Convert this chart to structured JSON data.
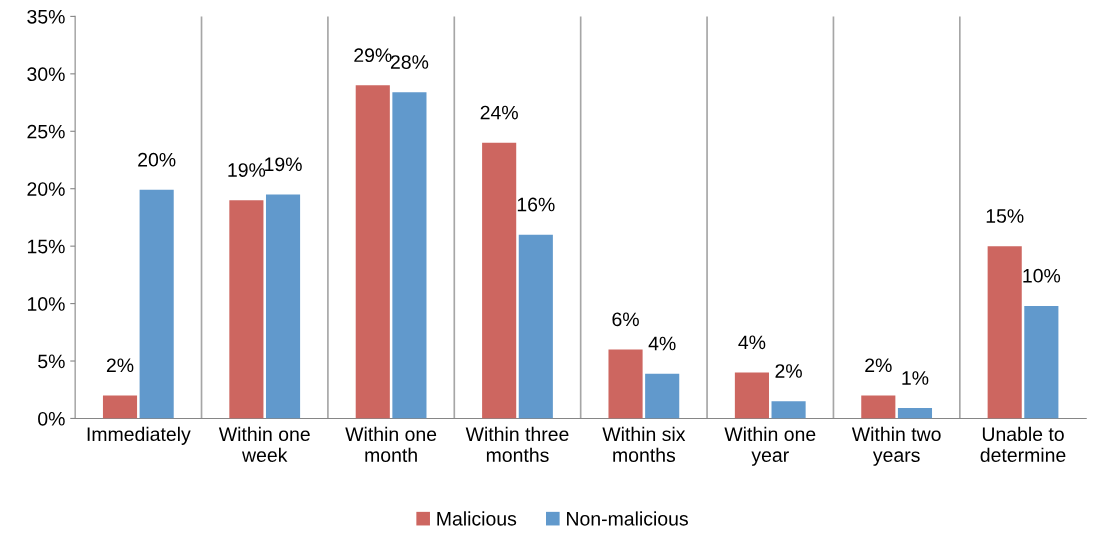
{
  "chart_data": {
    "type": "bar",
    "categories": [
      "Immediately",
      "Within one\nweek",
      "Within one\nmonth",
      "Within three\nmonths",
      "Within six\nmonths",
      "Within one\nyear",
      "Within two\nyears",
      "Unable to\ndetermine"
    ],
    "series": [
      {
        "name": "Malicious",
        "color": "#cd6660",
        "values": [
          2,
          19,
          29,
          24,
          6,
          4,
          2,
          15
        ],
        "value_labels": [
          "2%",
          "19%",
          "29%",
          "24%",
          "6%",
          "4%",
          "2%",
          "15%"
        ]
      },
      {
        "name": "Non-malicious",
        "color": "#6199cc",
        "values": [
          19.9,
          19.5,
          28.4,
          16,
          3.9,
          1.5,
          0.9,
          9.8
        ],
        "value_labels": [
          "20%",
          "19%",
          "28%",
          "16%",
          "4%",
          "2%",
          "1%",
          "10%"
        ]
      }
    ],
    "ylim": [
      0,
      35
    ],
    "yticks": [
      {
        "value": 0,
        "label": "0%"
      },
      {
        "value": 5,
        "label": "5%"
      },
      {
        "value": 10,
        "label": "10%"
      },
      {
        "value": 15,
        "label": "15%"
      },
      {
        "value": 20,
        "label": "20%"
      },
      {
        "value": 25,
        "label": "25%"
      },
      {
        "value": 30,
        "label": "30%"
      },
      {
        "value": 35,
        "label": "35%"
      }
    ],
    "grid": "x",
    "legend": "bottom"
  }
}
